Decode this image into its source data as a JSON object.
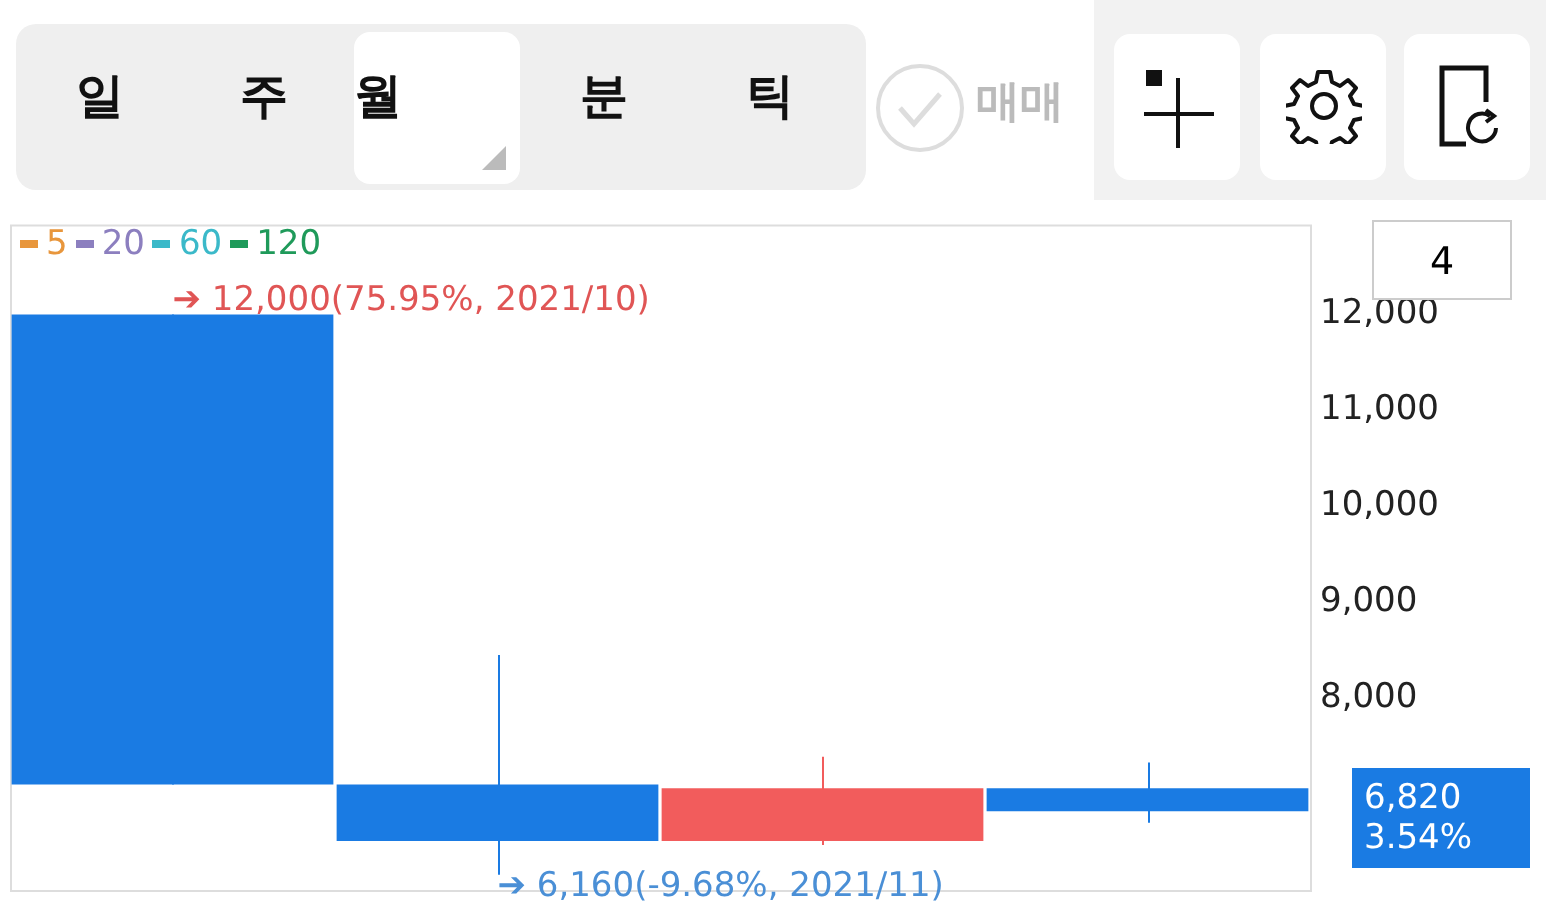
{
  "chart_data": {
    "type": "candlestick",
    "categories": [
      null,
      null,
      null,
      null
    ],
    "ohlc": [
      [
        12000,
        12000,
        7100,
        7100
      ],
      [
        7100,
        8450,
        6160,
        6510
      ],
      [
        6510,
        7390,
        6470,
        7060
      ],
      [
        7060,
        7330,
        6700,
        6820
      ]
    ],
    "colors": [
      "#1a7be3",
      "#1a7be3",
      "#f25c5c",
      "#1a7be3"
    ],
    "series": [
      {
        "name": "5",
        "color": "#e8963c",
        "values": [
          null,
          null,
          null,
          null
        ]
      },
      {
        "name": "20",
        "color": "#8c7fbf",
        "values": [
          null,
          null,
          null,
          null
        ]
      },
      {
        "name": "60",
        "color": "#3bb9c9",
        "values": [
          null,
          null,
          null,
          null
        ]
      },
      {
        "name": "120",
        "color": "#1f9a5a",
        "values": [
          null,
          null,
          null,
          null
        ]
      }
    ],
    "ylim": [
      6000,
      12940
    ],
    "yticks": [
      {
        "value": 8000,
        "label": "8,000"
      },
      {
        "value": 9000,
        "label": "9,000"
      },
      {
        "value": 10000,
        "label": "10,000"
      },
      {
        "value": 11000,
        "label": "11,000"
      },
      {
        "value": 12000,
        "label": "12,000"
      }
    ],
    "legend": "top left",
    "grid": false,
    "annotations": [
      "➔ 12,000(75.95%, 2021/10)",
      "➔ 6,160(-9.68%, 2021/11)",
      "6,820",
      "3.54%",
      "4",
      "일",
      "주",
      "월",
      "분",
      "틱",
      "매매"
    ]
  }
}
